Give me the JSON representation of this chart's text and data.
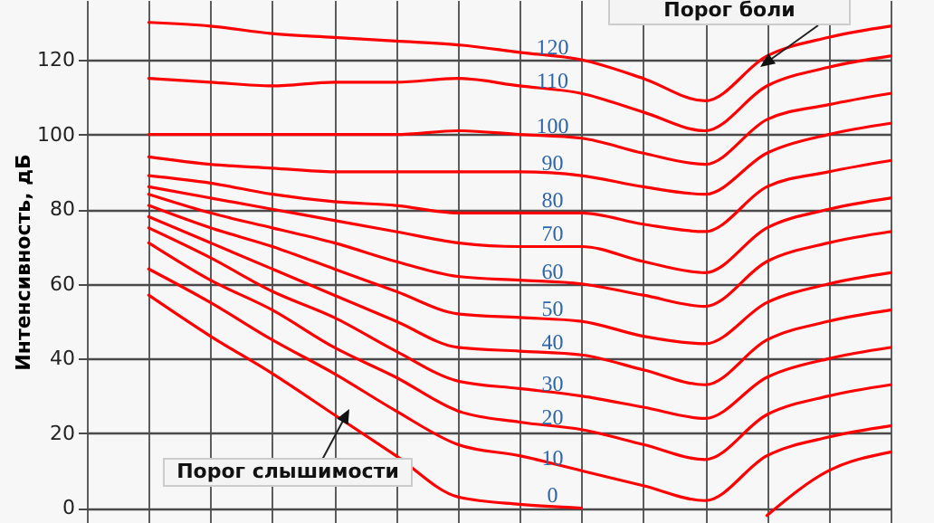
{
  "chart_data": {
    "type": "line",
    "ylabel": "Интенсивность, дБ",
    "categories": [
      null,
      null,
      null,
      null,
      null,
      null,
      null,
      null,
      null,
      null,
      null,
      null,
      null,
      null
    ],
    "ylim": [
      -4,
      136
    ],
    "yticks": [
      0,
      20,
      40,
      60,
      80,
      100,
      120
    ],
    "grid": true,
    "legend": false,
    "annotations": [
      "Порог боли",
      "Порог слышимости"
    ],
    "series": [
      {
        "name": "120",
        "color": "#ff0000",
        "values": [
          null,
          130,
          129,
          127,
          126,
          125,
          124,
          122,
          120,
          115,
          109,
          121,
          126,
          129
        ]
      },
      {
        "name": "110",
        "color": "#ff0000",
        "values": [
          null,
          115,
          114,
          113,
          114,
          114,
          115,
          113,
          111,
          106,
          101,
          113,
          118,
          121
        ]
      },
      {
        "name": "100",
        "color": "#ff0000",
        "values": [
          null,
          100,
          100,
          100,
          100,
          100,
          101,
          100,
          99,
          95,
          92,
          104,
          108,
          111
        ]
      },
      {
        "name": "90",
        "color": "#ff0000",
        "values": [
          null,
          94,
          92,
          91,
          90,
          90,
          90,
          90,
          89,
          86,
          84,
          95,
          100,
          103
        ]
      },
      {
        "name": "80",
        "color": "#ff0000",
        "values": [
          null,
          89,
          87,
          84,
          82,
          81,
          79,
          79,
          79,
          76,
          74,
          86,
          90,
          93
        ]
      },
      {
        "name": "70",
        "color": "#ff0000",
        "values": [
          null,
          86,
          83,
          80,
          77,
          74,
          71,
          70,
          70,
          66,
          63,
          75,
          80,
          83
        ]
      },
      {
        "name": "60",
        "color": "#ff0000",
        "values": [
          null,
          84,
          79,
          75,
          71,
          66,
          62,
          61,
          60,
          57,
          54,
          66,
          71,
          74
        ]
      },
      {
        "name": "50",
        "color": "#ff0000",
        "values": [
          null,
          81,
          75,
          70,
          64,
          58,
          52,
          51,
          50,
          46,
          44,
          55,
          60,
          63
        ]
      },
      {
        "name": "40",
        "color": "#ff0000",
        "values": [
          null,
          78,
          71,
          64,
          57,
          50,
          43,
          42,
          41,
          37,
          33,
          45,
          50,
          53
        ]
      },
      {
        "name": "30",
        "color": "#ff0000",
        "values": [
          null,
          75,
          67,
          58,
          51,
          42,
          34,
          32,
          30,
          27,
          24,
          35,
          40,
          43
        ]
      },
      {
        "name": "20",
        "color": "#ff0000",
        "values": [
          null,
          71,
          61,
          53,
          43,
          35,
          26,
          23,
          21,
          17,
          13,
          25,
          30,
          33
        ]
      },
      {
        "name": "10",
        "color": "#ff0000",
        "values": [
          null,
          64,
          55,
          45,
          36,
          26,
          17,
          14,
          10,
          6,
          2,
          14,
          19,
          22
        ]
      },
      {
        "name": "0",
        "color": "#ff0000",
        "values": [
          null,
          57,
          46,
          36,
          25,
          14,
          3,
          1,
          0,
          null,
          null,
          -2,
          10,
          15
        ]
      }
    ]
  }
}
